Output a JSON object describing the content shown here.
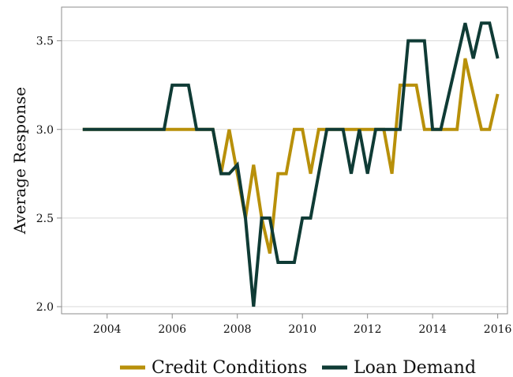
{
  "chart_data": {
    "type": "line",
    "title": "",
    "xlabel": "",
    "ylabel": "Average Response",
    "xlim": [
      2002.6,
      2016.3
    ],
    "ylim": [
      1.96,
      3.69
    ],
    "x_ticks": [
      2004,
      2006,
      2008,
      2010,
      2012,
      2014,
      2016
    ],
    "x_tick_labels": [
      "2004",
      "2006",
      "2008",
      "2010",
      "2012",
      "2014",
      "2016"
    ],
    "y_ticks": [
      2.0,
      2.5,
      3.0,
      3.5
    ],
    "y_tick_labels": [
      "2.0",
      "2.5",
      "3.0",
      "3.5"
    ],
    "grid": "horizontal",
    "legend_position": "bottom",
    "series": [
      {
        "name": "Credit Conditions",
        "color": "#B8900A",
        "points": [
          [
            2003.25,
            3.0
          ],
          [
            2003.5,
            3.0
          ],
          [
            2003.75,
            3.0
          ],
          [
            2004.0,
            3.0
          ],
          [
            2004.25,
            3.0
          ],
          [
            2004.5,
            3.0
          ],
          [
            2004.75,
            3.0
          ],
          [
            2005.0,
            3.0
          ],
          [
            2005.25,
            3.0
          ],
          [
            2005.5,
            3.0
          ],
          [
            2005.75,
            3.0
          ],
          [
            2006.0,
            3.0
          ],
          [
            2006.25,
            3.0
          ],
          [
            2006.5,
            3.0
          ],
          [
            2006.75,
            3.0
          ],
          [
            2007.0,
            3.0
          ],
          [
            2007.25,
            3.0
          ],
          [
            2007.5,
            2.75
          ],
          [
            2007.75,
            3.0
          ],
          [
            2008.0,
            2.75
          ],
          [
            2008.25,
            2.5
          ],
          [
            2008.5,
            2.8
          ],
          [
            2008.75,
            2.5
          ],
          [
            2009.0,
            2.3
          ],
          [
            2009.25,
            2.75
          ],
          [
            2009.5,
            2.75
          ],
          [
            2009.75,
            3.0
          ],
          [
            2010.0,
            3.0
          ],
          [
            2010.25,
            2.75
          ],
          [
            2010.5,
            3.0
          ],
          [
            2010.75,
            3.0
          ],
          [
            2011.0,
            3.0
          ],
          [
            2011.25,
            3.0
          ],
          [
            2011.5,
            3.0
          ],
          [
            2011.75,
            3.0
          ],
          [
            2012.0,
            3.0
          ],
          [
            2012.25,
            3.0
          ],
          [
            2012.5,
            3.0
          ],
          [
            2012.75,
            2.75
          ],
          [
            2013.0,
            3.25
          ],
          [
            2013.25,
            3.25
          ],
          [
            2013.5,
            3.25
          ],
          [
            2013.75,
            3.0
          ],
          [
            2014.0,
            3.0
          ],
          [
            2014.25,
            3.0
          ],
          [
            2014.5,
            3.0
          ],
          [
            2014.75,
            3.0
          ],
          [
            2015.0,
            3.4
          ],
          [
            2015.25,
            3.2
          ],
          [
            2015.5,
            3.0
          ],
          [
            2015.75,
            3.0
          ],
          [
            2016.0,
            3.2
          ]
        ]
      },
      {
        "name": "Loan Demand",
        "color": "#0F3B35",
        "points": [
          [
            2003.25,
            3.0
          ],
          [
            2003.5,
            3.0
          ],
          [
            2003.75,
            3.0
          ],
          [
            2004.0,
            3.0
          ],
          [
            2004.25,
            3.0
          ],
          [
            2004.5,
            3.0
          ],
          [
            2004.75,
            3.0
          ],
          [
            2005.0,
            3.0
          ],
          [
            2005.25,
            3.0
          ],
          [
            2005.5,
            3.0
          ],
          [
            2005.75,
            3.0
          ],
          [
            2006.0,
            3.25
          ],
          [
            2006.25,
            3.25
          ],
          [
            2006.5,
            3.25
          ],
          [
            2006.75,
            3.0
          ],
          [
            2007.0,
            3.0
          ],
          [
            2007.25,
            3.0
          ],
          [
            2007.5,
            2.75
          ],
          [
            2007.75,
            2.75
          ],
          [
            2008.0,
            2.8
          ],
          [
            2008.25,
            2.5
          ],
          [
            2008.5,
            2.0
          ],
          [
            2008.75,
            2.5
          ],
          [
            2009.0,
            2.5
          ],
          [
            2009.25,
            2.25
          ],
          [
            2009.5,
            2.25
          ],
          [
            2009.75,
            2.25
          ],
          [
            2010.0,
            2.5
          ],
          [
            2010.25,
            2.5
          ],
          [
            2010.5,
            2.75
          ],
          [
            2010.75,
            3.0
          ],
          [
            2011.0,
            3.0
          ],
          [
            2011.25,
            3.0
          ],
          [
            2011.5,
            2.75
          ],
          [
            2011.75,
            3.0
          ],
          [
            2012.0,
            2.75
          ],
          [
            2012.25,
            3.0
          ],
          [
            2012.5,
            3.0
          ],
          [
            2012.75,
            3.0
          ],
          [
            2013.0,
            3.0
          ],
          [
            2013.25,
            3.5
          ],
          [
            2013.5,
            3.5
          ],
          [
            2013.75,
            3.5
          ],
          [
            2014.0,
            3.0
          ],
          [
            2014.25,
            3.0
          ],
          [
            2014.5,
            3.2
          ],
          [
            2014.75,
            3.4
          ],
          [
            2015.0,
            3.6
          ],
          [
            2015.25,
            3.4
          ],
          [
            2015.5,
            3.6
          ],
          [
            2015.75,
            3.6
          ],
          [
            2016.0,
            3.4
          ]
        ]
      }
    ]
  }
}
